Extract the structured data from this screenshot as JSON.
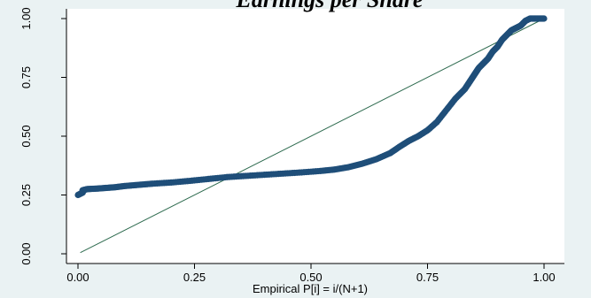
{
  "chart_data": {
    "type": "scatter",
    "title": "Earnings per Share",
    "xlabel": "Empirical P[i] = i/(N+1)",
    "ylabel": "",
    "xlim": [
      0,
      1
    ],
    "ylim": [
      0,
      1
    ],
    "x_ticks": [
      0,
      0.25,
      0.5,
      0.75,
      1
    ],
    "x_tick_labels": [
      "0.00",
      "0.25",
      "0.50",
      "0.75",
      "1.00"
    ],
    "y_ticks": [
      0,
      0.25,
      0.5,
      0.75,
      1
    ],
    "y_tick_labels": [
      "0.00",
      "0.25",
      "0.50",
      "0.75",
      "1.00"
    ],
    "grid": false,
    "series": [
      {
        "kind": "points",
        "color": "#1f4e79",
        "points": [
          [
            0.0,
            0.25
          ],
          [
            0.01,
            0.26
          ],
          [
            0.01,
            0.27
          ],
          [
            0.02,
            0.275
          ],
          [
            0.04,
            0.277
          ],
          [
            0.06,
            0.28
          ],
          [
            0.08,
            0.283
          ],
          [
            0.1,
            0.288
          ],
          [
            0.13,
            0.293
          ],
          [
            0.16,
            0.298
          ],
          [
            0.2,
            0.303
          ],
          [
            0.24,
            0.31
          ],
          [
            0.28,
            0.318
          ],
          [
            0.32,
            0.326
          ],
          [
            0.36,
            0.331
          ],
          [
            0.4,
            0.336
          ],
          [
            0.44,
            0.341
          ],
          [
            0.48,
            0.346
          ],
          [
            0.52,
            0.352
          ],
          [
            0.55,
            0.358
          ],
          [
            0.58,
            0.368
          ],
          [
            0.61,
            0.383
          ],
          [
            0.64,
            0.402
          ],
          [
            0.67,
            0.428
          ],
          [
            0.69,
            0.455
          ],
          [
            0.71,
            0.48
          ],
          [
            0.73,
            0.5
          ],
          [
            0.75,
            0.525
          ],
          [
            0.77,
            0.56
          ],
          [
            0.79,
            0.61
          ],
          [
            0.81,
            0.66
          ],
          [
            0.83,
            0.7
          ],
          [
            0.84,
            0.73
          ],
          [
            0.85,
            0.76
          ],
          [
            0.86,
            0.79
          ],
          [
            0.87,
            0.81
          ],
          [
            0.88,
            0.83
          ],
          [
            0.89,
            0.86
          ],
          [
            0.9,
            0.88
          ],
          [
            0.91,
            0.91
          ],
          [
            0.92,
            0.93
          ],
          [
            0.93,
            0.95
          ],
          [
            0.94,
            0.96
          ],
          [
            0.95,
            0.97
          ],
          [
            0.96,
            0.99
          ],
          [
            0.97,
            1.0
          ],
          [
            0.98,
            1.0
          ],
          [
            0.99,
            1.0
          ],
          [
            1.0,
            1.0
          ]
        ]
      },
      {
        "kind": "reference-line",
        "color": "#2e6b4f",
        "points": [
          [
            0.005,
            0.005
          ],
          [
            1.0,
            1.0
          ]
        ]
      }
    ]
  }
}
